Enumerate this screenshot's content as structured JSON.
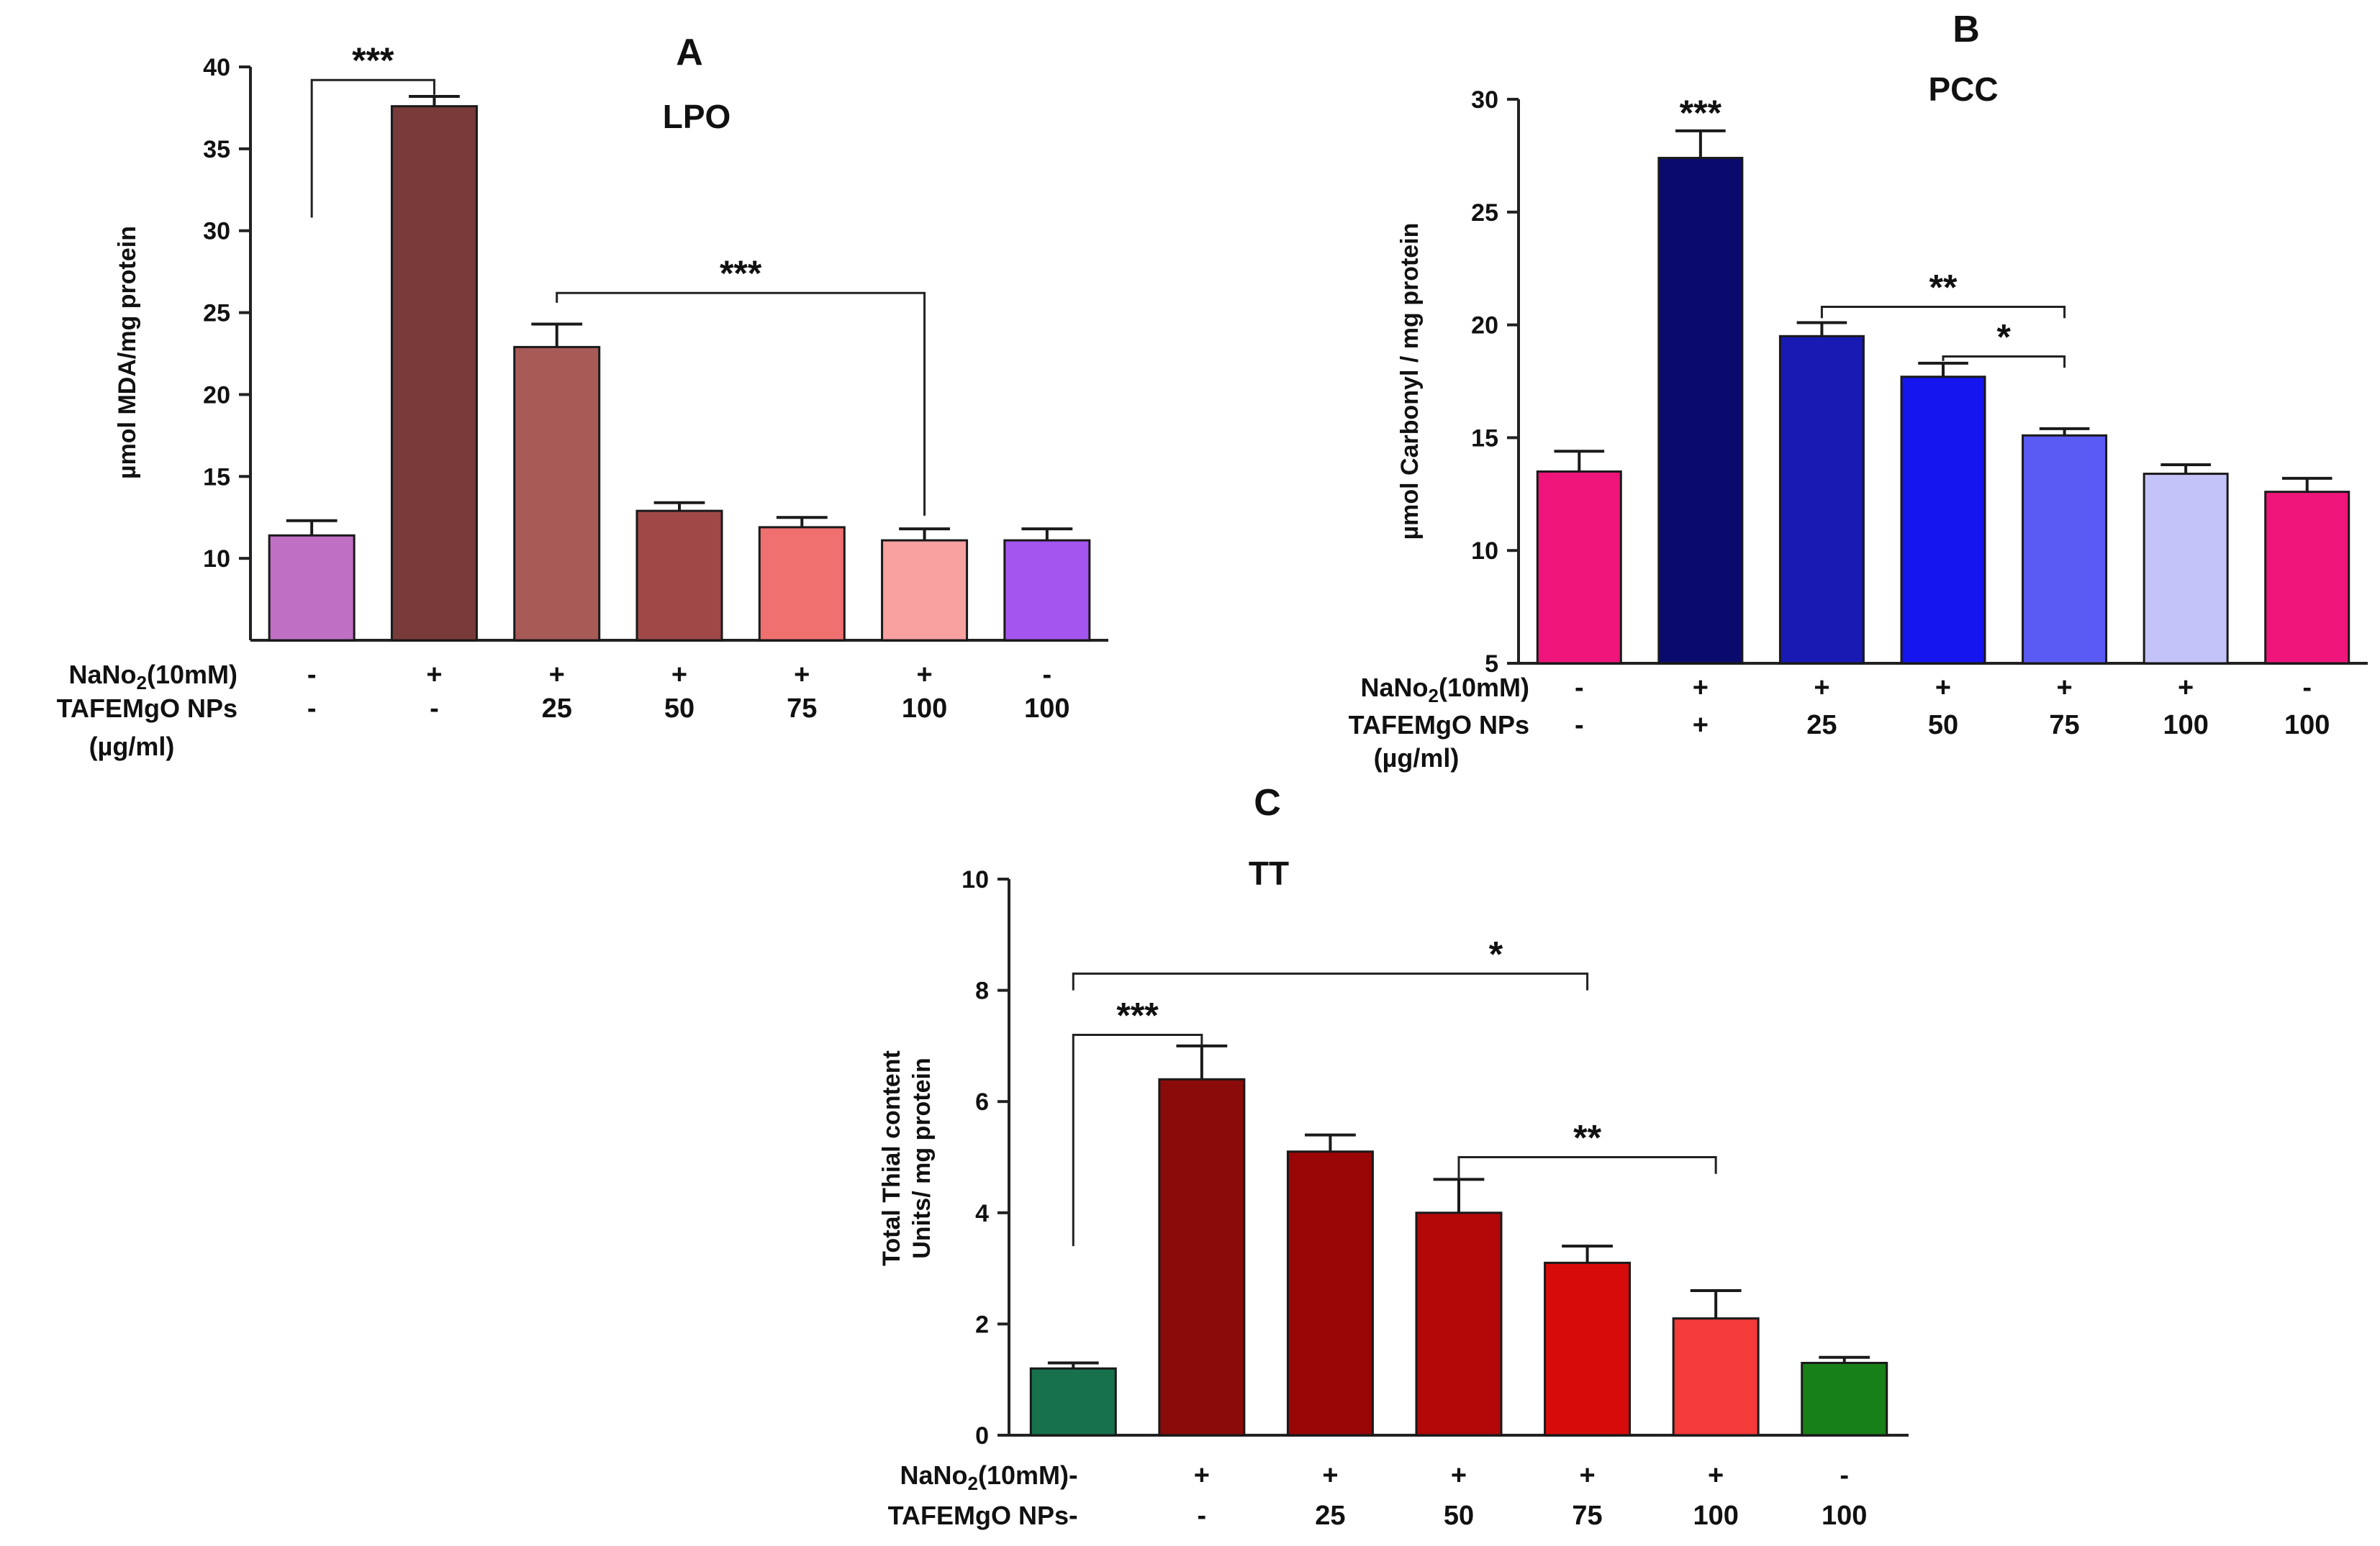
{
  "chart_data": [
    {
      "type": "bar",
      "panel": "A",
      "title": "LPO",
      "ylabel": "µmol MDA/mg protein",
      "ylim": [
        5,
        40
      ],
      "yticks": [
        10,
        15,
        20,
        25,
        30,
        35,
        40
      ],
      "rows": [
        {
          "label": "NaNo₂(10mM)",
          "marks": [
            "-",
            "+",
            "+",
            "+",
            "+",
            "+",
            "-"
          ]
        },
        {
          "label": "TAFEMgO NPs",
          "marks": [
            "-",
            "-",
            "25",
            "50",
            "75",
            "100",
            "100"
          ]
        }
      ],
      "unit_label": "(µg/ml)",
      "values": [
        11.4,
        37.6,
        22.9,
        12.9,
        11.9,
        11.1,
        11.1
      ],
      "errors": [
        0.9,
        0.6,
        1.4,
        0.5,
        0.6,
        0.7,
        0.7
      ],
      "colors": [
        "#bf70c4",
        "#793a3a",
        "#a85a57",
        "#a04848",
        "#f07070",
        "#f9a0a0",
        "#a455f0"
      ],
      "significance": [
        {
          "from": 0,
          "to": 1,
          "label": "***",
          "y": 39.2,
          "left_drop": 30.8,
          "right_drop": 38.3
        },
        {
          "from": 2,
          "to": 5,
          "label": "***",
          "y": 26.2,
          "left_drop": 25.6,
          "right_drop": 12.6
        }
      ]
    },
    {
      "type": "bar",
      "panel": "B",
      "title": "PCC",
      "ylabel": "µmol Carbonyl / mg protein",
      "ylim": [
        5,
        30
      ],
      "yticks": [
        5,
        10,
        15,
        20,
        25,
        30
      ],
      "rows": [
        {
          "label": "NaNo₂(10mM)",
          "marks": [
            "-",
            "+",
            "+",
            "+",
            "+",
            "+",
            "-"
          ]
        },
        {
          "label": "TAFEMgO NPs",
          "marks": [
            "-",
            "+",
            "25",
            "50",
            "75",
            "100",
            "100"
          ]
        }
      ],
      "unit_label": "(µg/ml)",
      "values": [
        13.5,
        27.4,
        19.5,
        17.7,
        15.1,
        13.4,
        12.6
      ],
      "errors": [
        0.9,
        1.2,
        0.6,
        0.6,
        0.3,
        0.4,
        0.6
      ],
      "colors": [
        "#f0157a",
        "#0a0a6e",
        "#1919b4",
        "#1515f0",
        "#5a5af5",
        "#c3c3fa",
        "#f0157a"
      ],
      "significance": [
        {
          "from": 2,
          "to": 4,
          "label": "**",
          "y": 20.8,
          "left_drop": 20.3,
          "right_drop": 20.3
        },
        {
          "from": 3,
          "to": 4,
          "label": "*",
          "y": 18.6,
          "left_drop": 18.4,
          "right_drop": 18.1
        }
      ],
      "annotations": [
        {
          "bar": 1,
          "label": "***",
          "y": 29.3
        }
      ]
    },
    {
      "type": "bar",
      "panel": "C",
      "title": "TT",
      "ylabel": "Total Thial content Units/ mg protein",
      "ylabel_lines": [
        "Total Thial content",
        "Units/ mg protein"
      ],
      "ylim": [
        0,
        10
      ],
      "yticks": [
        0,
        2,
        4,
        6,
        8,
        10
      ],
      "rows": [
        {
          "label": "NaNo₂(10mM)",
          "marks": [
            "-",
            "+",
            "+",
            "+",
            "+",
            "+",
            "-"
          ]
        },
        {
          "label": "TAFEMgO NPs",
          "marks": [
            "-",
            "-",
            "25",
            "50",
            "75",
            "100",
            "100"
          ]
        }
      ],
      "values": [
        1.2,
        6.4,
        5.1,
        4.0,
        3.1,
        2.1,
        1.3
      ],
      "errors": [
        0.1,
        0.6,
        0.3,
        0.6,
        0.3,
        0.5,
        0.1
      ],
      "colors": [
        "#17714d",
        "#8b0a0a",
        "#9a0505",
        "#b20808",
        "#d80b0b",
        "#f53a3a",
        "#188018"
      ],
      "significance": [
        {
          "from": 0,
          "to": 4,
          "label": "*",
          "y": 8.3,
          "left_drop": 8.0,
          "right_drop": 8.0
        },
        {
          "from": 0,
          "to": 1,
          "label": "***",
          "y": 7.2,
          "left_drop": 3.4,
          "right_drop": 7.0
        },
        {
          "from": 3,
          "to": 5,
          "label": "**",
          "y": 5.0,
          "left_drop": 4.6,
          "right_drop": 4.7
        }
      ]
    }
  ]
}
